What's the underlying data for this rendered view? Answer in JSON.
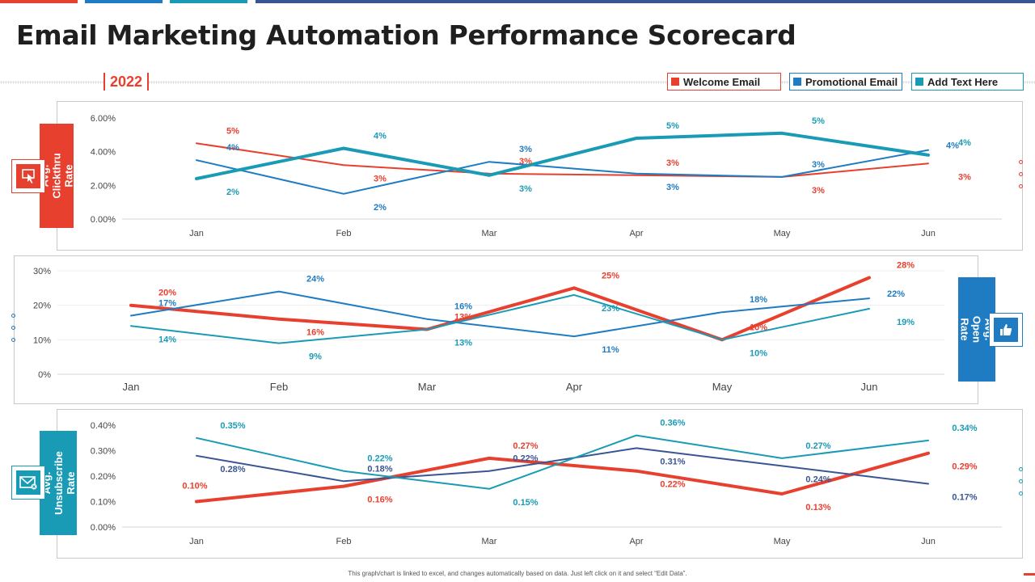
{
  "title": "Email Marketing Automation Performance Scorecard",
  "year": "2022",
  "colors": {
    "red": "#e8402f",
    "blue": "#1f7cc2",
    "teal": "#199bb6",
    "navy": "#3a5594"
  },
  "legend": [
    {
      "label": "Welcome Email",
      "color": "#e8402f"
    },
    {
      "label": "Promotional Email",
      "color": "#1f7cc2"
    },
    {
      "label": "Add Text Here",
      "color": "#199bb6"
    }
  ],
  "footnote": "This graph/chart is linked to excel, and changes automatically based on data. Just left click on it and select “Edit Data”.",
  "chart_data": [
    {
      "type": "line",
      "title": "Avg. Clickthru Rate",
      "categories": [
        "Jan",
        "Feb",
        "Mar",
        "Apr",
        "May",
        "Jun"
      ],
      "yticks": [
        "6.00%",
        "4.00%",
        "2.00%",
        "0.00%"
      ],
      "ylim": [
        0,
        6
      ],
      "series": [
        {
          "name": "Welcome Email",
          "color": "#e8402f",
          "width": 2,
          "values": [
            4.5,
            3.2,
            2.7,
            2.6,
            2.5,
            3.3
          ],
          "labels": [
            "5%",
            "3%",
            "3%",
            "3%",
            "3%",
            "3%"
          ],
          "label_pos": [
            "above",
            "below",
            "above",
            "above",
            "below",
            "below"
          ]
        },
        {
          "name": "Promotional Email",
          "color": "#1f7cc2",
          "width": 2,
          "values": [
            3.5,
            1.5,
            3.4,
            2.7,
            2.5,
            4.1
          ],
          "labels": [
            "4%",
            "2%",
            "3%",
            "3%",
            "3%",
            "4%"
          ],
          "label_pos": [
            "above",
            "below",
            "above",
            "below",
            "above",
            "right"
          ]
        },
        {
          "name": "Add Text Here",
          "color": "#199bb6",
          "width": 4,
          "values": [
            2.4,
            4.2,
            2.6,
            4.8,
            5.1,
            3.8
          ],
          "labels": [
            "2%",
            "4%",
            "3%",
            "5%",
            "5%",
            "4%"
          ],
          "label_pos": [
            "below",
            "above",
            "below",
            "above",
            "above",
            "above"
          ]
        }
      ]
    },
    {
      "type": "line",
      "title": "Avg. Open Rate",
      "categories": [
        "Jan",
        "Feb",
        "Mar",
        "Apr",
        "May",
        "Jun"
      ],
      "yticks": [
        "30%",
        "20%",
        "10%",
        "0%"
      ],
      "ylim": [
        0,
        30
      ],
      "series": [
        {
          "name": "Welcome Email",
          "color": "#e8402f",
          "width": 4,
          "values": [
            20,
            16,
            13,
            25,
            10,
            28
          ],
          "labels": [
            "20%",
            "16%",
            "13%",
            "25%",
            "10%",
            "28%"
          ],
          "label_pos": [
            "above",
            "below",
            "above",
            "above",
            "above",
            "above"
          ]
        },
        {
          "name": "Promotional Email",
          "color": "#1f7cc2",
          "width": 2,
          "values": [
            17,
            24,
            16,
            11,
            18,
            22
          ],
          "labels": [
            "17%",
            "24%",
            "16%",
            "11%",
            "18%",
            "22%"
          ],
          "label_pos": [
            "above",
            "above",
            "above",
            "below",
            "above",
            "right"
          ]
        },
        {
          "name": "Add Text Here",
          "color": "#199bb6",
          "width": 2,
          "values": [
            14,
            9,
            13,
            23,
            10,
            19
          ],
          "labels": [
            "14%",
            "9%",
            "13%",
            "23%",
            "10%",
            "19%"
          ],
          "label_pos": [
            "below",
            "below",
            "below",
            "below",
            "below",
            "below"
          ]
        }
      ]
    },
    {
      "type": "line",
      "title": "Avg. Unsubscribe Rate",
      "categories": [
        "Jan",
        "Feb",
        "Mar",
        "Apr",
        "May",
        "Jun"
      ],
      "yticks": [
        "0.40%",
        "0.30%",
        "0.20%",
        "0.10%",
        "0.00%"
      ],
      "ylim": [
        0,
        0.4
      ],
      "series": [
        {
          "name": "Welcome Email",
          "color": "#e8402f",
          "width": 4,
          "values": [
            0.1,
            0.16,
            0.27,
            0.22,
            0.13,
            0.29
          ],
          "labels": [
            "0.10%",
            "0.16%",
            "0.27%",
            "0.22%",
            "0.13%",
            "0.29%"
          ],
          "label_pos": [
            "left",
            "below",
            "above",
            "below",
            "below",
            "below"
          ]
        },
        {
          "name": "Promotional Email",
          "color": "#3a5594",
          "width": 2,
          "values": [
            0.28,
            0.18,
            0.22,
            0.31,
            0.24,
            0.17
          ],
          "labels": [
            "0.28%",
            "0.18%",
            "0.22%",
            "0.31%",
            "0.24%",
            "0.17%"
          ],
          "label_pos": [
            "below",
            "above",
            "above",
            "below",
            "below",
            "below"
          ]
        },
        {
          "name": "Add Text Here",
          "color": "#199bb6",
          "width": 2,
          "values": [
            0.35,
            0.22,
            0.15,
            0.36,
            0.27,
            0.34
          ],
          "labels": [
            "0.35%",
            "0.22%",
            "0.15%",
            "0.36%",
            "0.27%",
            "0.34%"
          ],
          "label_pos": [
            "above",
            "above",
            "below",
            "above",
            "above",
            "above"
          ]
        }
      ]
    }
  ]
}
